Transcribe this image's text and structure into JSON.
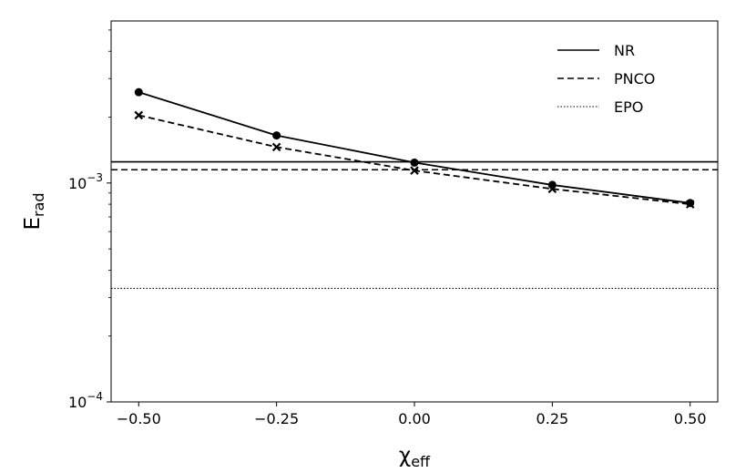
{
  "chart_data": {
    "type": "line",
    "title": "",
    "xlabel": {
      "main": "χ",
      "sub": "eff"
    },
    "ylabel": {
      "main": "E",
      "sub": "rad"
    },
    "x_ticks": [
      {
        "value": -0.5,
        "label": "−0.50"
      },
      {
        "value": -0.25,
        "label": "−0.25"
      },
      {
        "value": 0.0,
        "label": "0.00"
      },
      {
        "value": 0.25,
        "label": "0.25"
      },
      {
        "value": 0.5,
        "label": "0.50"
      }
    ],
    "y_ticks": [
      {
        "value": 0.0001,
        "mantissa": "10",
        "exponent": "−4"
      },
      {
        "value": 0.001,
        "mantissa": "10",
        "exponent": "−3"
      }
    ],
    "xlim": [
      -0.55,
      0.55
    ],
    "ylim": [
      0.0001,
      0.0055
    ],
    "yscale": "log",
    "grid": false,
    "legend_position": "upper-right",
    "series": [
      {
        "name": "NR",
        "style": "solid",
        "marker": "circle",
        "color": "#000000",
        "x": [
          -0.5,
          -0.25,
          0.0,
          0.25,
          0.5
        ],
        "y": [
          0.0026,
          0.00165,
          0.00124,
          0.00098,
          0.00081
        ]
      },
      {
        "name": "PNCO",
        "style": "dashed",
        "marker": "x",
        "color": "#000000",
        "x": [
          -0.5,
          -0.25,
          0.0,
          0.25,
          0.5
        ],
        "y": [
          0.00204,
          0.00146,
          0.00114,
          0.00094,
          0.0008
        ]
      }
    ],
    "horizontal_lines": [
      {
        "series": "NR",
        "style": "solid",
        "y": 0.00125
      },
      {
        "series": "PNCO",
        "style": "dashed",
        "y": 0.00115
      },
      {
        "series": "EPO",
        "style": "dotted",
        "y": 0.00033
      }
    ],
    "legend": [
      {
        "label": "NR",
        "style": "solid"
      },
      {
        "label": "PNCO",
        "style": "dashed"
      },
      {
        "label": "EPO",
        "style": "dotted"
      }
    ]
  }
}
